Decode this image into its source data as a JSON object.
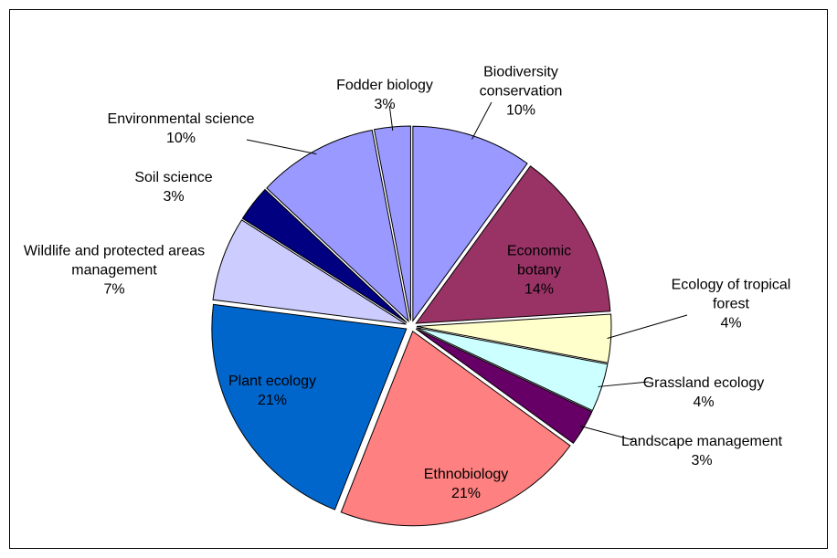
{
  "chart_data": {
    "type": "pie",
    "categories": [
      "Biodiversity conservation",
      "Economic botany",
      "Ecology of tropical forest",
      "Grassland ecology",
      "Landscape management",
      "Ethnobiology",
      "Plant ecology",
      "Wildlife and protected areas management",
      "Soil science",
      "Environmental science",
      "Fodder biology"
    ],
    "values": [
      10,
      14,
      4,
      4,
      3,
      21,
      21,
      7,
      3,
      10,
      3
    ],
    "value_labels": [
      "10%",
      "14%",
      "4%",
      "4%",
      "3%",
      "21%",
      "21%",
      "7%",
      "3%",
      "10%",
      "3%"
    ],
    "colors": [
      "#9999ff",
      "#993366",
      "#ffffcc",
      "#ccffff",
      "#660066",
      "#ff8080",
      "#0066cc",
      "#ccccff",
      "#000080",
      "#9999ff",
      "#9999ff"
    ]
  }
}
